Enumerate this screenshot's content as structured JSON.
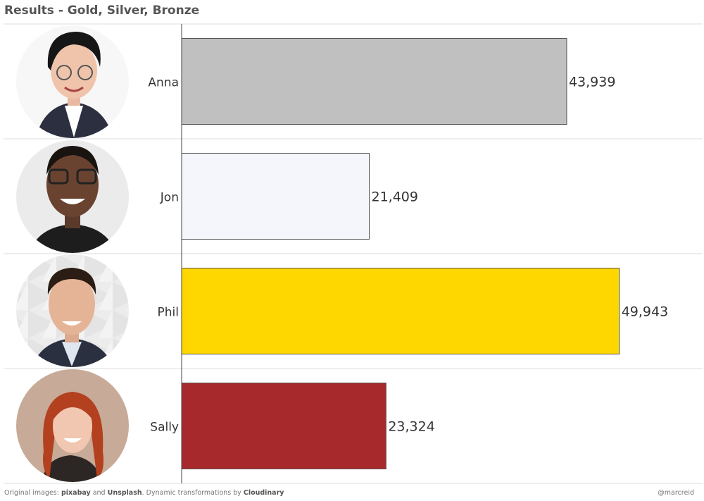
{
  "title": "Results - Gold, Silver, Bronze",
  "chart_data": {
    "type": "bar",
    "orientation": "horizontal",
    "categories": [
      "Anna",
      "Jon",
      "Phil",
      "Sally"
    ],
    "values": [
      43939,
      21409,
      49943,
      23324
    ],
    "value_labels": [
      "43,939",
      "21,409",
      "49,943",
      "23,324"
    ],
    "bar_colors": [
      "#c0c0c0",
      "#f5f5fc",
      "#ffd700",
      "#a8292b"
    ],
    "avatar_icons": [
      "avatar-anna-icon",
      "avatar-jon-icon",
      "avatar-phil-icon",
      "avatar-sally-icon"
    ],
    "xlim": [
      0,
      58000
    ],
    "grid": false
  },
  "footer": {
    "prefix": "Original images: ",
    "source1": "pixabay",
    "and": " and ",
    "source2": "Unsplash",
    "middle": ".  Dynamic transformations by ",
    "tool": "Cloudinary",
    "credit": "@marcreid"
  }
}
